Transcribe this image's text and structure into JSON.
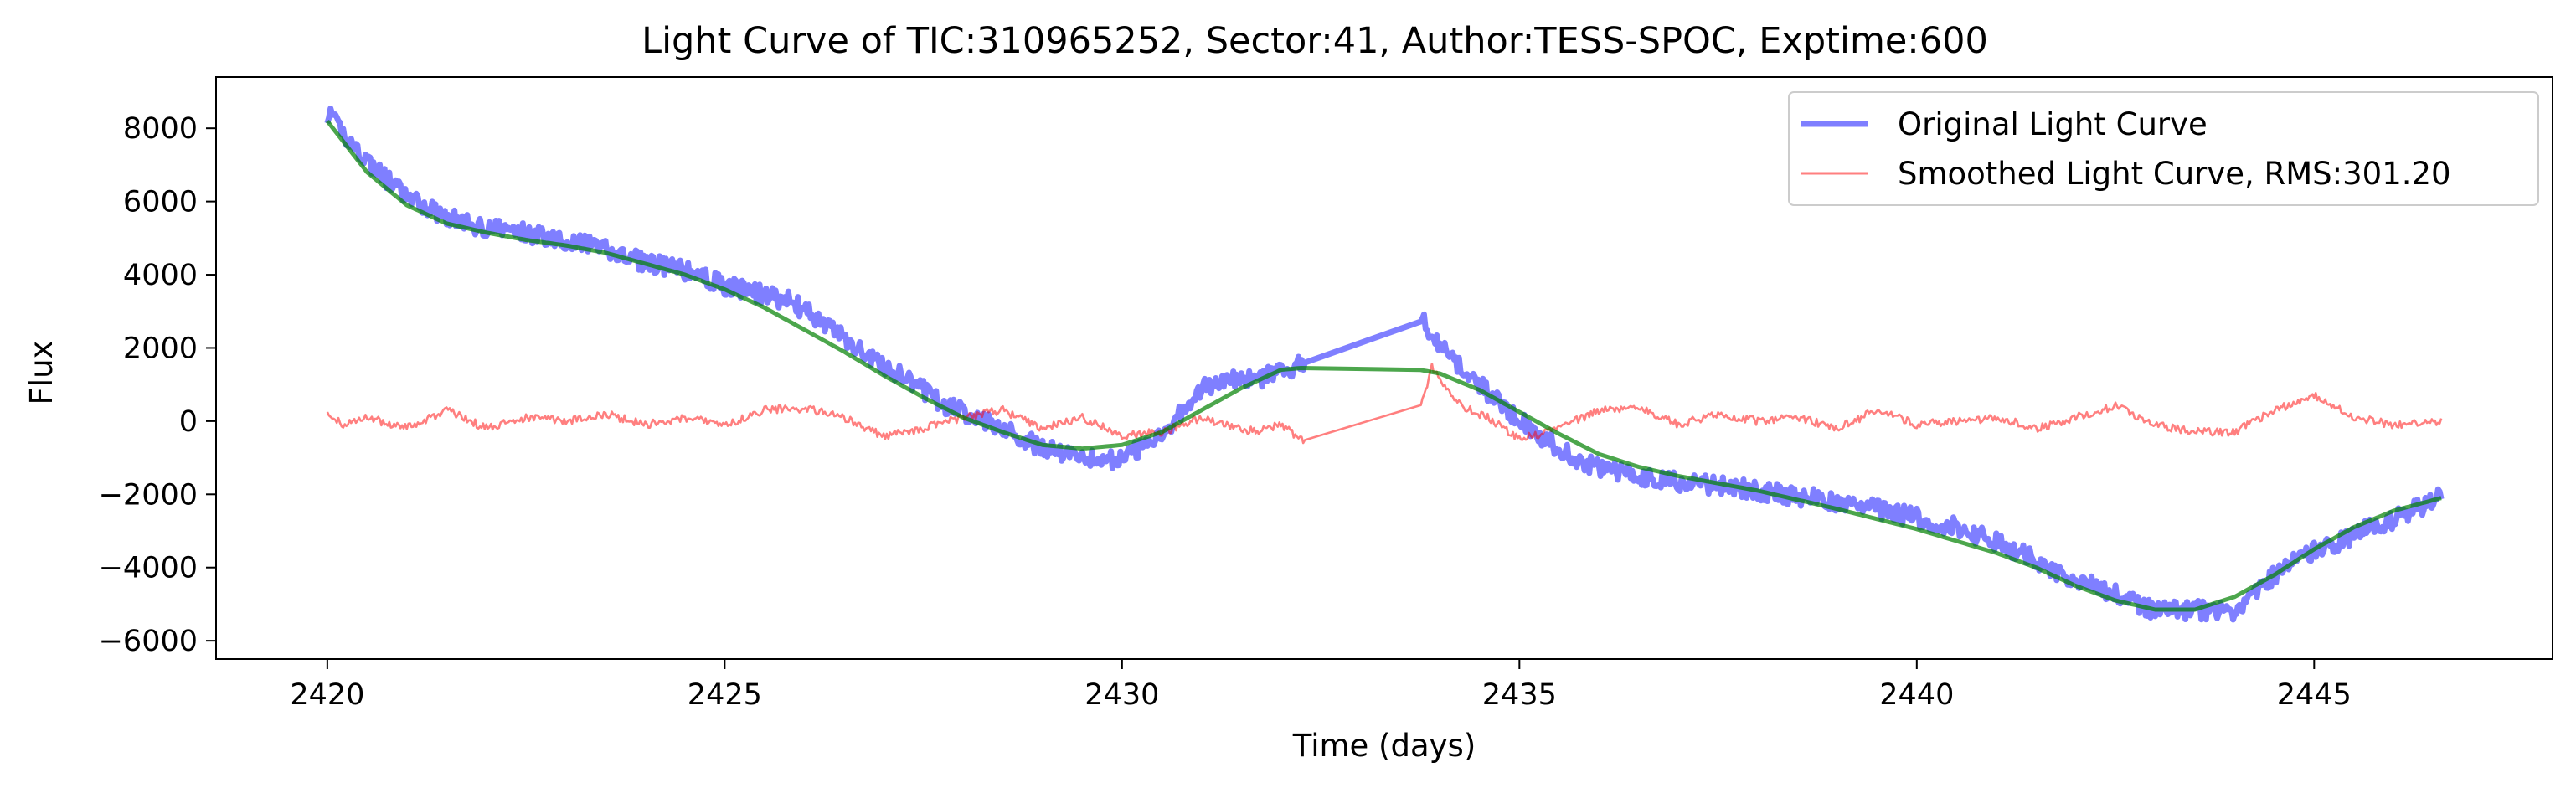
{
  "chart_data": {
    "type": "line",
    "title": "Light Curve of TIC:310965252, Sector:41, Author:TESS-SPOC, Exptime:600",
    "xlabel": "Time (days)",
    "ylabel": "Flux",
    "xlim": [
      2418.6,
      2448.0
    ],
    "ylim": [
      -6500,
      9400
    ],
    "x_ticks": [
      2420,
      2425,
      2430,
      2435,
      2440,
      2445
    ],
    "y_ticks": [
      -6000,
      -4000,
      -2000,
      0,
      2000,
      4000,
      6000,
      8000
    ],
    "grid": false,
    "legend_position": "upper right",
    "gap": [
      2432.3,
      2433.75
    ],
    "series": [
      {
        "name": "Original Light Curve",
        "color": "#0000ff",
        "opacity": 0.5,
        "x": [
          2420.0,
          2420.3,
          2420.6,
          2421.0,
          2421.4,
          2421.8,
          2422.2,
          2422.6,
          2423.0,
          2423.4,
          2423.8,
          2424.2,
          2424.6,
          2425.0,
          2425.4,
          2425.8,
          2426.2,
          2426.6,
          2427.0,
          2427.4,
          2427.8,
          2428.2,
          2428.6,
          2429.0,
          2429.4,
          2429.8,
          2430.2,
          2430.6,
          2431.0,
          2431.4,
          2431.8,
          2432.2,
          2433.75,
          2434.0,
          2434.4,
          2434.8,
          2435.2,
          2435.6,
          2436.0,
          2436.5,
          2437.0,
          2437.5,
          2438.0,
          2438.5,
          2439.0,
          2439.5,
          2440.0,
          2440.5,
          2441.0,
          2441.5,
          2442.0,
          2442.5,
          2443.0,
          2443.5,
          2444.0,
          2444.4,
          2444.8,
          2445.2,
          2445.6,
          2446.0,
          2446.6
        ],
        "y": [
          8400,
          7600,
          6900,
          6100,
          5700,
          5350,
          5250,
          5100,
          4950,
          4750,
          4450,
          4250,
          4050,
          3700,
          3500,
          3300,
          2750,
          2100,
          1500,
          1000,
          400,
          100,
          -300,
          -750,
          -900,
          -1100,
          -800,
          -100,
          900,
          1100,
          1200,
          1500,
          2900,
          2000,
          1200,
          400,
          -300,
          -900,
          -1300,
          -1500,
          -1650,
          -1750,
          -1900,
          -2050,
          -2200,
          -2400,
          -2650,
          -2900,
          -3300,
          -3800,
          -4350,
          -4700,
          -5200,
          -5150,
          -5200,
          -4400,
          -3700,
          -3400,
          -3000,
          -2700,
          -2050
        ]
      },
      {
        "name": "Smoothed Light Curve, RMS:301.20",
        "color": "#ff0000",
        "opacity": 0.5,
        "x": [
          2420.0,
          2420.2,
          2420.5,
          2421.0,
          2421.5,
          2422.0,
          2422.5,
          2423.0,
          2423.5,
          2424.0,
          2424.5,
          2425.0,
          2425.5,
          2426.0,
          2426.5,
          2427.0,
          2427.5,
          2428.0,
          2428.5,
          2429.0,
          2429.5,
          2430.0,
          2430.5,
          2431.0,
          2431.3,
          2431.7,
          2432.0,
          2432.3,
          2433.75,
          2433.9,
          2434.2,
          2434.6,
          2435.0,
          2435.5,
          2436.0,
          2436.5,
          2437.0,
          2437.5,
          2438.0,
          2438.5,
          2439.0,
          2439.5,
          2440.0,
          2440.5,
          2441.0,
          2441.5,
          2442.0,
          2442.5,
          2443.0,
          2443.5,
          2444.0,
          2444.5,
          2445.0,
          2445.5,
          2446.0,
          2446.6
        ],
        "y": [
          200,
          -100,
          100,
          -200,
          300,
          -200,
          100,
          0,
          200,
          -100,
          100,
          -100,
          300,
          350,
          100,
          -400,
          -200,
          100,
          300,
          -200,
          100,
          -400,
          -300,
          100,
          -100,
          -300,
          -100,
          -600,
          300,
          1500,
          500,
          100,
          -500,
          -200,
          300,
          400,
          -100,
          200,
          0,
          100,
          -200,
          300,
          -100,
          0,
          100,
          -200,
          100,
          400,
          -100,
          -300,
          -300,
          300,
          700,
          100,
          -100,
          0
        ]
      },
      {
        "name": "",
        "color": "#008000",
        "opacity": 0.7,
        "x": [
          2420.0,
          2420.5,
          2421.0,
          2421.5,
          2422.0,
          2422.5,
          2423.0,
          2423.5,
          2424.0,
          2424.5,
          2425.0,
          2425.5,
          2426.0,
          2426.5,
          2427.0,
          2427.5,
          2428.0,
          2428.5,
          2429.0,
          2429.5,
          2430.0,
          2430.5,
          2431.0,
          2431.5,
          2432.0,
          2432.5,
          2433.0,
          2433.5,
          2434.0,
          2434.5,
          2435.0,
          2435.5,
          2436.0,
          2436.5,
          2437.0,
          2438.0,
          2439.0,
          2440.0,
          2441.0,
          2441.5,
          2442.0,
          2442.5,
          2443.0,
          2443.5,
          2444.0,
          2444.5,
          2445.0,
          2445.5,
          2446.0,
          2446.6
        ],
        "y": [
          8200,
          6800,
          5900,
          5400,
          5150,
          4950,
          4800,
          4600,
          4300,
          4000,
          3600,
          3100,
          2500,
          1900,
          1250,
          650,
          100,
          -300,
          -650,
          -750,
          -650,
          -300,
          300,
          900,
          1400,
          1500,
          1500,
          1500,
          1300,
          850,
          250,
          -350,
          -900,
          -1250,
          -1500,
          -1900,
          -2400,
          -2950,
          -3600,
          -4000,
          -4500,
          -4900,
          -5150,
          -5150,
          -4800,
          -4200,
          -3500,
          -2900,
          -2450,
          -2100
        ]
      }
    ]
  }
}
